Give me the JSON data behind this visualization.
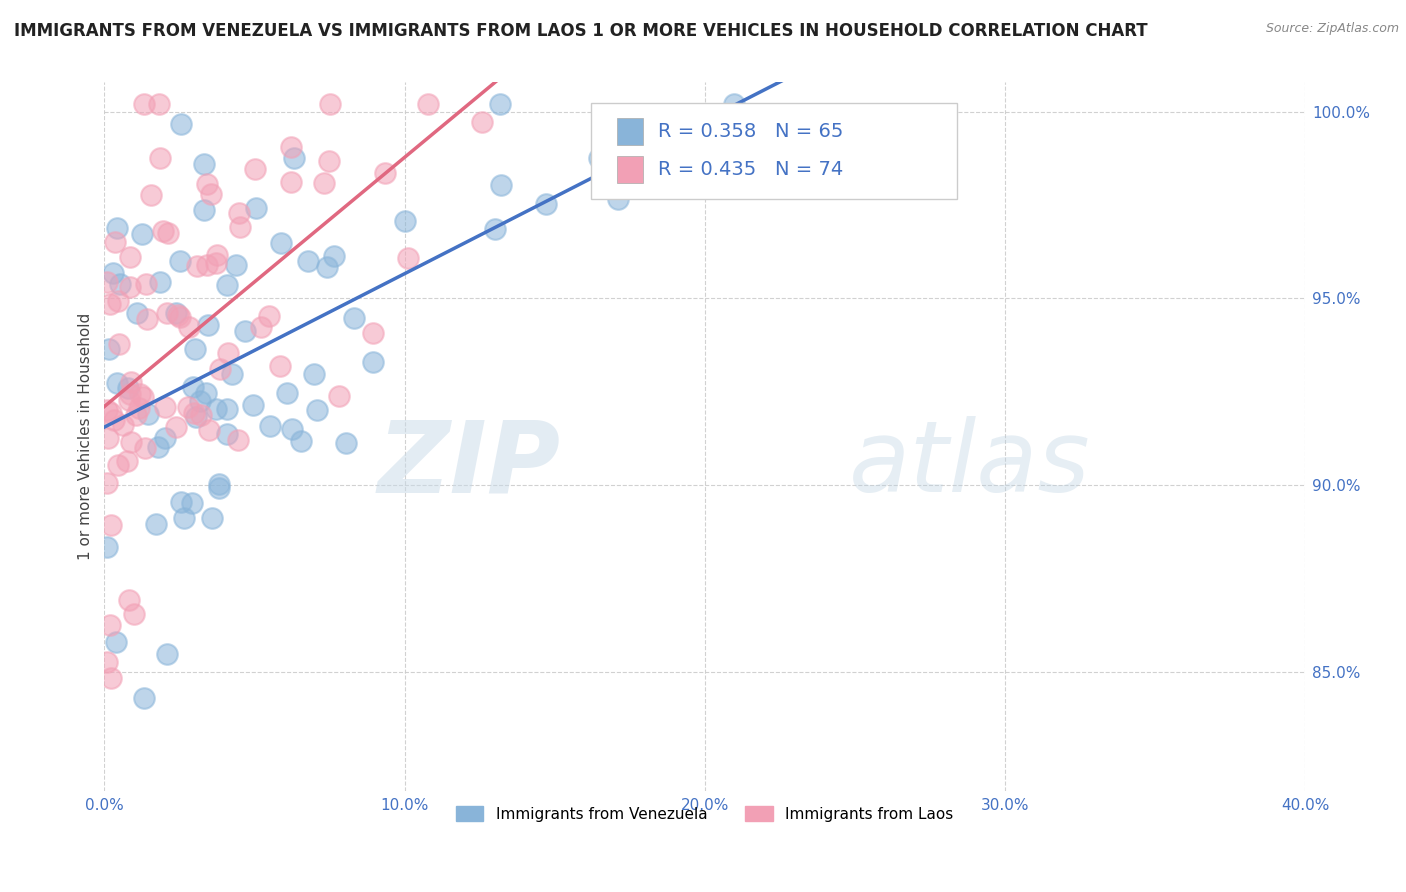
{
  "title": "IMMIGRANTS FROM VENEZUELA VS IMMIGRANTS FROM LAOS 1 OR MORE VEHICLES IN HOUSEHOLD CORRELATION CHART",
  "source": "Source: ZipAtlas.com",
  "ylabel": "1 or more Vehicles in Household",
  "xlim": [
    0.0,
    0.4
  ],
  "ylim": [
    0.818,
    1.008
  ],
  "xticks": [
    0.0,
    0.1,
    0.2,
    0.3,
    0.4
  ],
  "xtick_labels": [
    "0.0%",
    "10.0%",
    "20.0%",
    "30.0%",
    "40.0%"
  ],
  "yticks": [
    0.85,
    0.9,
    0.95,
    1.0
  ],
  "ytick_labels": [
    "85.0%",
    "90.0%",
    "95.0%",
    "100.0%"
  ],
  "legend1_label": "Immigrants from Venezuela",
  "legend2_label": "Immigrants from Laos",
  "R_venezuela": 0.358,
  "N_venezuela": 65,
  "R_laos": 0.435,
  "N_laos": 74,
  "color_venezuela": "#89b4d9",
  "color_laos": "#f2a0b5",
  "line_color_venezuela": "#4472c4",
  "line_color_laos": "#e06880",
  "watermark_zip": "ZIP",
  "watermark_atlas": "atlas",
  "background_color": "#ffffff",
  "title_fontsize": 12,
  "axis_label_fontsize": 11,
  "tick_fontsize": 11,
  "legend_fontsize": 14
}
